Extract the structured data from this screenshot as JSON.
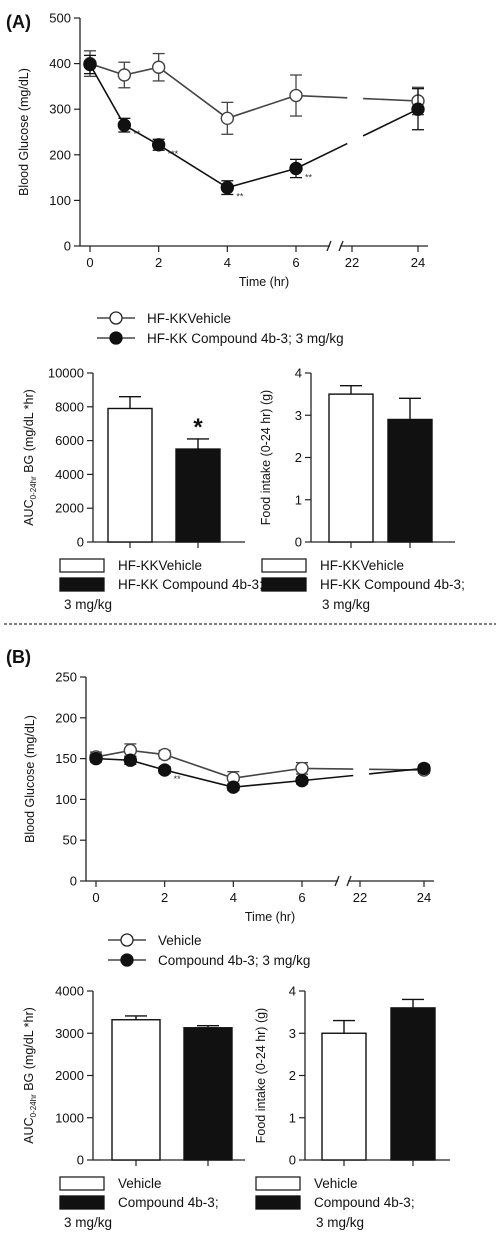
{
  "panels": {
    "a_label": "(A)",
    "b_label": "(B)"
  },
  "chart_data": [
    {
      "id": "A_time",
      "type": "line",
      "xlabel": "Time (hr)",
      "ylabel": "Blood Glucose (mg/dL)",
      "ylim": [
        0,
        500
      ],
      "yticks": [
        0,
        100,
        200,
        300,
        400,
        500
      ],
      "xticks": [
        0,
        2,
        4,
        6,
        22,
        24
      ],
      "axis_break": [
        7,
        21
      ],
      "series": [
        {
          "name": "HF-KKVehicle",
          "marker": "open-circle",
          "x": [
            0,
            1,
            2,
            4,
            6,
            24
          ],
          "y": [
            400,
            375,
            392,
            280,
            330,
            318
          ],
          "err": [
            28,
            28,
            30,
            35,
            45,
            30
          ]
        },
        {
          "name": "HF-KK Compound 4b-3; 3 mg/kg",
          "marker": "filled-circle",
          "x": [
            0,
            1,
            2,
            4,
            6,
            24
          ],
          "y": [
            398,
            265,
            222,
            128,
            170,
            300
          ],
          "err": [
            20,
            15,
            12,
            15,
            20,
            45
          ]
        }
      ],
      "annotations": [
        {
          "x": 1,
          "y": 265,
          "text": "**"
        },
        {
          "x": 2,
          "y": 222,
          "text": "***"
        },
        {
          "x": 4,
          "y": 128,
          "text": "**"
        },
        {
          "x": 6,
          "y": 170,
          "text": "**"
        }
      ]
    },
    {
      "id": "A_auc",
      "type": "bar",
      "ylabel_main": "AUC",
      "ylabel_sub": "0-24hr",
      "ylabel_rest": " BG (mg/dL *hr)",
      "ylim": [
        0,
        10000
      ],
      "yticks": [
        0,
        2000,
        4000,
        6000,
        8000,
        10000
      ],
      "series": [
        {
          "name": "HF-KKVehicle",
          "fill": "white",
          "value": 7900,
          "err": 700
        },
        {
          "name": "HF-KK Compound 4b-3; 3 mg/kg",
          "fill": "black",
          "value": 5500,
          "err": 600
        }
      ],
      "annotations": [
        {
          "bar": 1,
          "text": "*"
        }
      ]
    },
    {
      "id": "A_food",
      "type": "bar",
      "ylabel": "Food intake (0-24 hr) (g)",
      "ylim": [
        0,
        4
      ],
      "yticks": [
        0,
        1,
        2,
        3,
        4
      ],
      "series": [
        {
          "name": "HF-KKVehicle",
          "fill": "white",
          "value": 3.5,
          "err": 0.2
        },
        {
          "name": "HF-KK Compound 4b-3; 3 mg/kg",
          "fill": "black",
          "value": 2.9,
          "err": 0.5
        }
      ]
    },
    {
      "id": "B_time",
      "type": "line",
      "xlabel": "Time (hr)",
      "ylabel": "Blood Glucose (mg/dL)",
      "ylim": [
        0,
        250
      ],
      "yticks": [
        0,
        50,
        100,
        150,
        200,
        250
      ],
      "xticks": [
        0,
        2,
        4,
        6,
        22,
        24
      ],
      "axis_break": [
        7,
        21
      ],
      "series": [
        {
          "name": "Vehicle",
          "marker": "open-circle",
          "x": [
            0,
            1,
            2,
            4,
            6,
            24
          ],
          "y": [
            152,
            160,
            155,
            126,
            138,
            136
          ],
          "err": [
            6,
            8,
            5,
            8,
            7,
            4
          ]
        },
        {
          "name": "Compound 4b-3; 3 mg/kg",
          "marker": "filled-circle",
          "x": [
            0,
            1,
            2,
            4,
            6,
            24
          ],
          "y": [
            150,
            148,
            136,
            115,
            123,
            138
          ],
          "err": [
            4,
            5,
            4,
            4,
            4,
            4
          ]
        }
      ],
      "annotations": [
        {
          "x": 2,
          "y": 136,
          "text": "**"
        }
      ]
    },
    {
      "id": "B_auc",
      "type": "bar",
      "ylabel_main": "AUC",
      "ylabel_sub": "0-24hr",
      "ylabel_rest": " BG (mg/dL *hr)",
      "ylim": [
        0,
        4000
      ],
      "yticks": [
        0,
        1000,
        2000,
        3000,
        4000
      ],
      "series": [
        {
          "name": "Vehicle",
          "fill": "white",
          "value": 3320,
          "err": 90
        },
        {
          "name": "Compound 4b-3; 3 mg/kg",
          "fill": "black",
          "value": 3130,
          "err": 50
        }
      ]
    },
    {
      "id": "B_food",
      "type": "bar",
      "ylabel": "Food intake (0-24 hr) (g)",
      "ylim": [
        0,
        4
      ],
      "yticks": [
        0,
        1,
        2,
        3,
        4
      ],
      "series": [
        {
          "name": "Vehicle",
          "fill": "white",
          "value": 3.0,
          "err": 0.3
        },
        {
          "name": "Compound 4b-3; 3 mg/kg",
          "fill": "black",
          "value": 3.6,
          "err": 0.2
        }
      ]
    }
  ],
  "legends": {
    "a_line": [
      "HF-KKVehicle",
      "HF-KK Compound 4b-3; 3 mg/kg"
    ],
    "a_auc": [
      "HF-KKVehicle",
      "HF-KK Compound 4b-3;",
      "3 mg/kg"
    ],
    "a_food": [
      "HF-KKVehicle",
      "HF-KK Compound 4b-3;",
      "3 mg/kg"
    ],
    "b_line": [
      "Vehicle",
      "Compound 4b-3; 3 mg/kg"
    ],
    "b_auc": [
      "Vehicle",
      "Compound 4b-3;",
      "3 mg/kg"
    ],
    "b_food": [
      "Vehicle",
      "Compound 4b-3;",
      "3 mg/kg"
    ]
  }
}
